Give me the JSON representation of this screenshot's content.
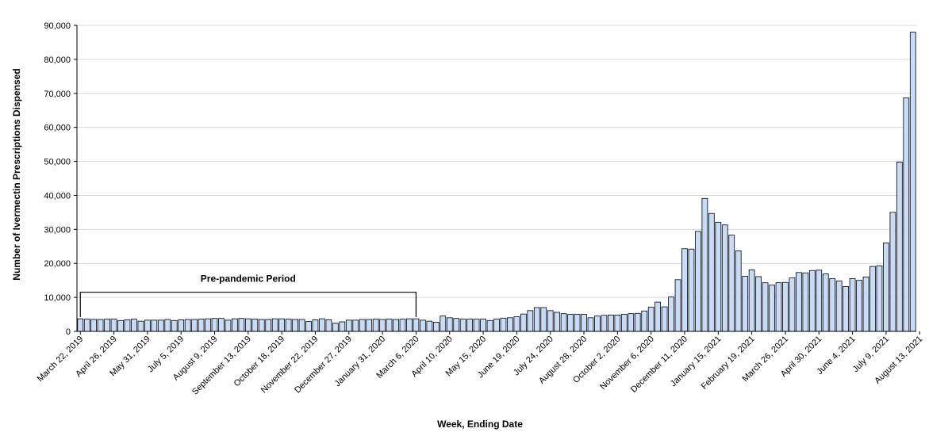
{
  "chart_data": {
    "type": "bar",
    "title": "",
    "xlabel": "Week, Ending Date",
    "ylabel": "Number of Ivermectin Prescriptions Dispensed",
    "ylim": [
      0,
      90000
    ],
    "yticks": [
      "0",
      "10,000",
      "20,000",
      "30,000",
      "40,000",
      "50,000",
      "60,000",
      "70,000",
      "80,000",
      "90,000"
    ],
    "ytick_values": [
      0,
      10000,
      20000,
      30000,
      40000,
      50000,
      60000,
      70000,
      80000,
      90000
    ],
    "grid": true,
    "bar_color": "#c9dcf7",
    "bar_edge_color": "#000000",
    "grid_color": "#d9d9d9",
    "x_tick_labels": [
      "March 22, 2019",
      "April 26, 2019",
      "May 31, 2019",
      "July 5, 2019",
      "August 9, 2019",
      "September 13, 2019",
      "October 18, 2019",
      "November 22, 2019",
      "December 27, 2019",
      "January 31, 2020",
      "March 6, 2020",
      "April 10, 2020",
      "May 15, 2020",
      "June 19, 2020",
      "July 24, 2020",
      "August 28, 2020",
      "October 2, 2020",
      "November 6, 2020",
      "December 11, 2020",
      "January 15, 2021",
      "February 19, 2021",
      "March 26, 2021",
      "April 30, 2021",
      "June 4, 2021",
      "July 9, 2021",
      "August 13, 2021"
    ],
    "annotation": {
      "text": "Pre-pandemic Period",
      "start_index": 0,
      "end_index": 50,
      "level": 11500
    },
    "values": [
      3700,
      3600,
      3500,
      3500,
      3600,
      3600,
      3200,
      3400,
      3600,
      3000,
      3300,
      3300,
      3300,
      3500,
      3200,
      3400,
      3500,
      3500,
      3600,
      3700,
      3800,
      3800,
      3300,
      3700,
      3800,
      3700,
      3600,
      3500,
      3500,
      3700,
      3700,
      3600,
      3500,
      3500,
      2900,
      3400,
      3700,
      3400,
      2400,
      2800,
      3300,
      3300,
      3500,
      3500,
      3600,
      3500,
      3600,
      3500,
      3600,
      3700,
      3700,
      3300,
      3000,
      2700,
      4500,
      4000,
      3800,
      3600,
      3600,
      3600,
      3600,
      3200,
      3600,
      3900,
      4000,
      4300,
      5100,
      6100,
      7000,
      7000,
      6100,
      5600,
      5200,
      5000,
      5000,
      5000,
      4000,
      4500,
      4700,
      4800,
      4800,
      5000,
      5200,
      5300,
      6000,
      7100,
      8600,
      7200,
      10100,
      15200,
      24300,
      24200,
      29400,
      39100,
      34700,
      32100,
      31300,
      28300,
      23700,
      16200,
      18100,
      16100,
      14300,
      13600,
      14300,
      14400,
      15700,
      17300,
      17200,
      17900,
      18000,
      16900,
      15500,
      14800,
      13200,
      15500,
      15000,
      16000,
      19100,
      19300,
      26000,
      35000,
      49800,
      68700,
      88000
    ]
  }
}
